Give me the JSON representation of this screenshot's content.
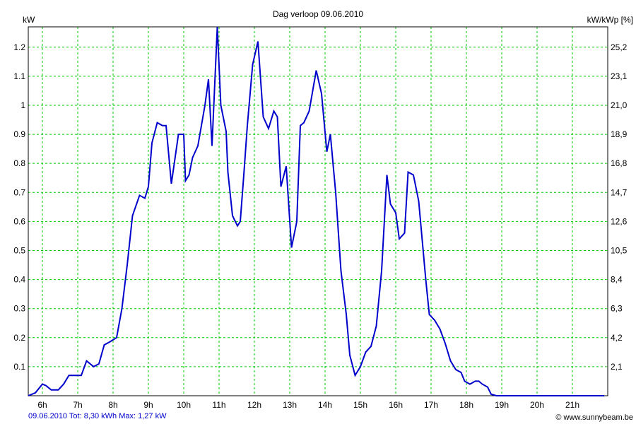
{
  "chart_data": {
    "type": "line",
    "title": "Dag  verloop 09.06.2010",
    "ylabel": "kW",
    "y2label": "kW/kWp [%]",
    "grid": true,
    "colors": {
      "line": "#0000cc",
      "grid": "#00cc00",
      "footer_left": "#0000cc",
      "footer_right": "#000000"
    },
    "xlim": [
      5.6,
      22.0
    ],
    "ylim": [
      0,
      1.27
    ],
    "x_ticks": [
      6,
      7,
      8,
      9,
      10,
      11,
      12,
      13,
      14,
      15,
      16,
      17,
      18,
      19,
      20,
      21
    ],
    "x_tick_labels": [
      "6h",
      "7h",
      "8h",
      "9h",
      "10h",
      "11h",
      "12h",
      "13h",
      "14h",
      "15h",
      "16h",
      "17h",
      "18h",
      "19h",
      "20h",
      "21h"
    ],
    "y_ticks": [
      0.1,
      0.2,
      0.3,
      0.4,
      0.5,
      0.6,
      0.7,
      0.8,
      0.9,
      1.0,
      1.1,
      1.2
    ],
    "y_tick_labels": [
      "0.1",
      "0.2",
      "0.3",
      "0.4",
      "0.5",
      "0.6",
      "0.7",
      "0.8",
      "0.9",
      "1",
      "1.1",
      "1.2"
    ],
    "y2_tick_labels": [
      "2,1",
      "4,2",
      "6,3",
      "8,4",
      "10,5",
      "12,6",
      "14,7",
      "16,8",
      "18,9",
      "21,0",
      "23,1",
      "25,2"
    ],
    "series": [
      {
        "x": [
          5.6,
          5.8,
          5.9,
          6.0,
          6.1,
          6.25,
          6.45,
          6.6,
          6.75,
          6.9,
          7.1,
          7.25,
          7.45,
          7.6,
          7.75,
          7.9,
          8.1,
          8.25,
          8.4,
          8.55,
          8.75,
          8.9,
          9.0,
          9.1,
          9.25,
          9.4,
          9.5,
          9.65,
          9.85,
          10.0,
          10.05,
          10.15,
          10.25,
          10.4,
          10.6,
          10.7,
          10.8,
          10.95,
          11.05,
          11.2,
          11.25,
          11.38,
          11.52,
          11.6,
          11.7,
          11.8,
          11.95,
          12.1,
          12.25,
          12.4,
          12.55,
          12.65,
          12.75,
          12.9,
          13.05,
          13.2,
          13.3,
          13.4,
          13.55,
          13.75,
          13.9,
          14.05,
          14.15,
          14.3,
          14.45,
          14.6,
          14.7,
          14.85,
          15.0,
          15.15,
          15.3,
          15.45,
          15.6,
          15.75,
          15.85,
          16.0,
          16.1,
          16.25,
          16.35,
          16.5,
          16.65,
          16.85,
          16.95,
          17.1,
          17.25,
          17.4,
          17.55,
          17.7,
          17.85,
          17.95,
          18.1,
          18.25,
          18.35,
          18.45,
          18.6,
          18.7,
          18.85,
          18.95,
          19.1,
          19.25,
          19.45,
          19.6,
          19.75,
          19.9,
          20.0,
          20.2,
          20.35,
          20.55,
          20.7,
          20.85,
          21.0,
          21.15,
          21.35,
          21.55,
          21.9
        ],
        "y": [
          0.0,
          0.01,
          0.025,
          0.04,
          0.035,
          0.02,
          0.02,
          0.04,
          0.07,
          0.07,
          0.07,
          0.12,
          0.1,
          0.11,
          0.175,
          0.185,
          0.2,
          0.3,
          0.45,
          0.62,
          0.69,
          0.68,
          0.72,
          0.87,
          0.94,
          0.93,
          0.93,
          0.73,
          0.9,
          0.9,
          0.74,
          0.76,
          0.82,
          0.86,
          1.0,
          1.09,
          0.86,
          1.27,
          1.0,
          0.91,
          0.77,
          0.62,
          0.585,
          0.6,
          0.76,
          0.93,
          1.14,
          1.22,
          0.96,
          0.92,
          0.98,
          0.96,
          0.72,
          0.79,
          0.51,
          0.6,
          0.93,
          0.94,
          0.98,
          1.12,
          1.04,
          0.84,
          0.9,
          0.7,
          0.43,
          0.28,
          0.14,
          0.07,
          0.1,
          0.15,
          0.17,
          0.24,
          0.43,
          0.76,
          0.66,
          0.63,
          0.54,
          0.56,
          0.77,
          0.76,
          0.67,
          0.4,
          0.28,
          0.26,
          0.23,
          0.18,
          0.12,
          0.09,
          0.08,
          0.05,
          0.04,
          0.05,
          0.05,
          0.04,
          0.03,
          0.005,
          0.0,
          0.0,
          0.0,
          0.0,
          0.0,
          0.0,
          0.0,
          0.0,
          0.0,
          0.0,
          0.0,
          0.0,
          0.0,
          0.0,
          0.0,
          0.0,
          0.0,
          0.0,
          0.0
        ]
      }
    ]
  },
  "footer": {
    "left": "09.06.2010 Tot: 8,30 kWh Max: 1,27 kW",
    "right": "© www.sunnybeam.be"
  }
}
